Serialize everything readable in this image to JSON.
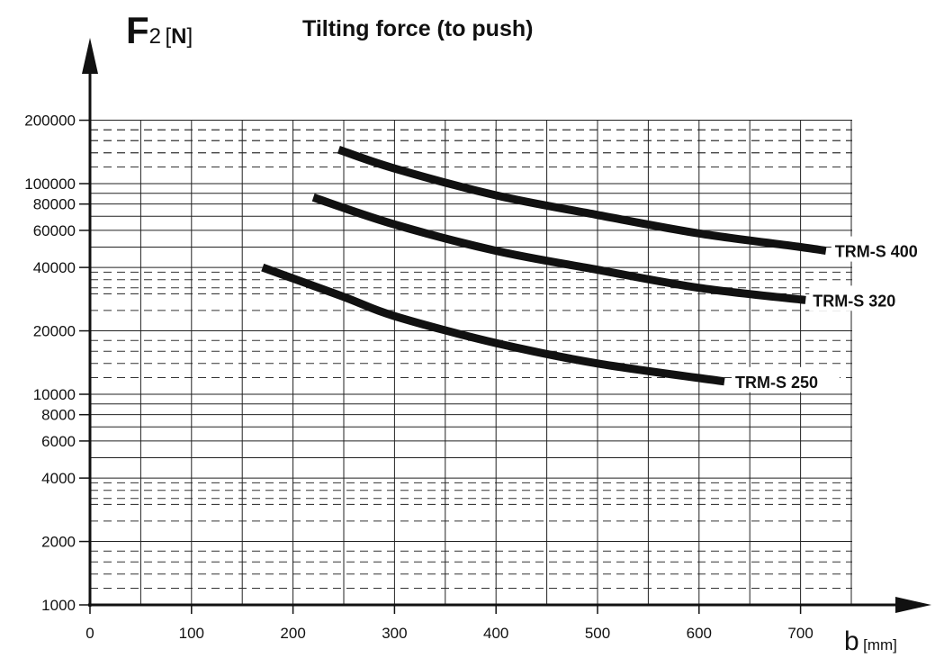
{
  "chart_data": {
    "type": "line",
    "title": "Tilting force (to push)",
    "ylabel": {
      "symbol": "F",
      "subscript": "2",
      "unit_open": "[",
      "unit": "N",
      "unit_close": "]"
    },
    "xlabel": {
      "symbol": "b",
      "unit": "[mm]"
    },
    "xlim": [
      0,
      750
    ],
    "ylim": [
      1000,
      200000
    ],
    "yscale": "log",
    "xticks": [
      0,
      100,
      200,
      300,
      400,
      500,
      600,
      700
    ],
    "yticks": [
      1000,
      2000,
      4000,
      6000,
      8000,
      10000,
      20000,
      40000,
      60000,
      80000,
      100000,
      200000
    ],
    "grid": true,
    "series": [
      {
        "name": "TRM-S 400",
        "x": [
          245,
          300,
          400,
          500,
          600,
          700,
          725
        ],
        "y": [
          145000,
          118000,
          88000,
          71000,
          58000,
          50000,
          48000
        ]
      },
      {
        "name": "TRM-S 320",
        "x": [
          220,
          300,
          400,
          500,
          600,
          705
        ],
        "y": [
          86000,
          64000,
          48000,
          39000,
          32000,
          28000
        ]
      },
      {
        "name": "TRM-S 250",
        "x": [
          170,
          250,
          300,
          400,
          500,
          625
        ],
        "y": [
          40000,
          29000,
          23500,
          17500,
          14000,
          11500
        ]
      }
    ]
  }
}
